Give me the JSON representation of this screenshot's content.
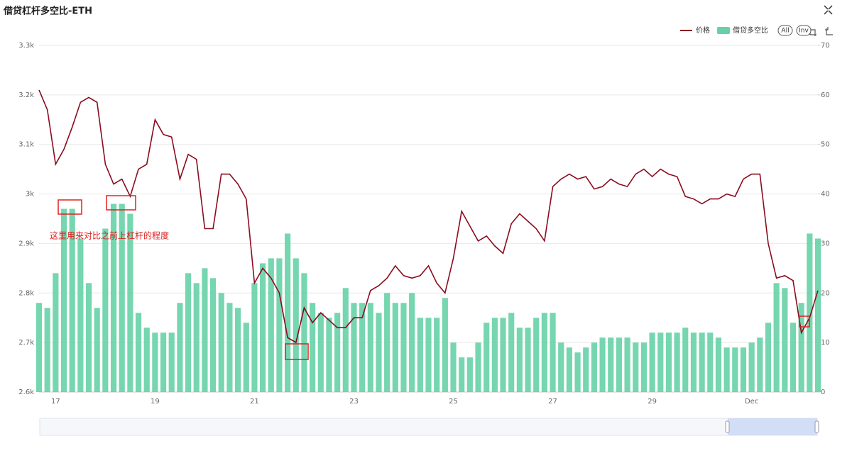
{
  "chart_data": {
    "type": "combo",
    "title": "借贷杠杆多空比-ETH",
    "categories": [
      null,
      null,
      "17",
      null,
      null,
      null,
      null,
      null,
      null,
      null,
      null,
      null,
      null,
      null,
      "19",
      null,
      null,
      null,
      null,
      null,
      null,
      null,
      null,
      null,
      null,
      null,
      "21",
      null,
      null,
      null,
      null,
      null,
      null,
      null,
      null,
      null,
      null,
      null,
      "23",
      null,
      null,
      null,
      null,
      null,
      null,
      null,
      null,
      null,
      null,
      null,
      "25",
      null,
      null,
      null,
      null,
      null,
      null,
      null,
      null,
      null,
      null,
      null,
      "27",
      null,
      null,
      null,
      null,
      null,
      null,
      null,
      null,
      null,
      null,
      null,
      "29",
      null,
      null,
      null,
      null,
      null,
      null,
      null,
      null,
      null,
      null,
      null,
      "Dec",
      null,
      null,
      null,
      null,
      null,
      null,
      null,
      null
    ],
    "series": [
      {
        "name": "借贷多空比",
        "type": "bar",
        "axis": "y2",
        "color": "#66d1a6",
        "values": [
          18,
          17,
          24,
          37,
          37,
          31,
          22,
          17,
          33,
          38,
          38,
          36,
          16,
          13,
          12,
          12,
          12,
          18,
          24,
          22,
          25,
          23,
          20,
          18,
          17,
          14,
          22,
          26,
          27,
          27,
          32,
          27,
          24,
          18,
          16,
          15,
          16,
          21,
          18,
          18,
          18,
          16,
          20,
          18,
          18,
          20,
          15,
          15,
          15,
          19,
          10,
          7,
          7,
          10,
          14,
          15,
          15,
          16,
          13,
          13,
          15,
          16,
          16,
          10,
          9,
          8,
          9,
          10,
          11,
          11,
          11,
          11,
          10,
          10,
          12,
          12,
          12,
          12,
          13,
          12,
          12,
          12,
          11,
          9,
          9,
          9,
          10,
          11,
          14,
          22,
          21,
          14,
          18,
          32,
          31
        ]
      },
      {
        "name": "价格",
        "type": "line",
        "axis": "y",
        "color": "#8b0c1e",
        "values": [
          3210,
          3170,
          3060,
          3090,
          3135,
          3185,
          3195,
          3185,
          3060,
          3020,
          3030,
          2995,
          3050,
          3060,
          3150,
          3120,
          3115,
          3030,
          3080,
          3070,
          2930,
          2930,
          3040,
          3040,
          3020,
          2990,
          2820,
          2850,
          2830,
          2800,
          2710,
          2700,
          2770,
          2740,
          2760,
          2745,
          2730,
          2730,
          2750,
          2750,
          2805,
          2815,
          2830,
          2855,
          2835,
          2830,
          2835,
          2855,
          2820,
          2800,
          2870,
          2965,
          2935,
          2905,
          2915,
          2895,
          2880,
          2940,
          2960,
          2945,
          2930,
          2905,
          3015,
          3030,
          3040,
          3030,
          3035,
          3010,
          3015,
          3030,
          3020,
          3015,
          3040,
          3050,
          3035,
          3050,
          3040,
          3035,
          2995,
          2990,
          2980,
          2990,
          2990,
          3000,
          2995,
          3030,
          3040,
          3040,
          2900,
          2830,
          2835,
          2825,
          2720,
          2750,
          2805
        ]
      }
    ],
    "ylim": [
      2600,
      3300
    ],
    "yticks": [
      {
        "value": 2600,
        "label": "2.6k"
      },
      {
        "value": 2700,
        "label": "2.7k"
      },
      {
        "value": 2800,
        "label": "2.8k"
      },
      {
        "value": 2900,
        "label": "2.9k"
      },
      {
        "value": 3000,
        "label": "3k"
      },
      {
        "value": 3100,
        "label": "3.1k"
      },
      {
        "value": 3200,
        "label": "3.2k"
      },
      {
        "value": 3300,
        "label": "3.3k"
      }
    ],
    "y2lim": [
      0,
      70
    ],
    "y2ticks": [
      0,
      10,
      20,
      30,
      40,
      50,
      60,
      70
    ],
    "grid": true,
    "annotations": [
      {
        "text": "这里用来对比之前上杠杆的程度"
      }
    ],
    "buttons": [
      "All",
      "Inv"
    ]
  }
}
